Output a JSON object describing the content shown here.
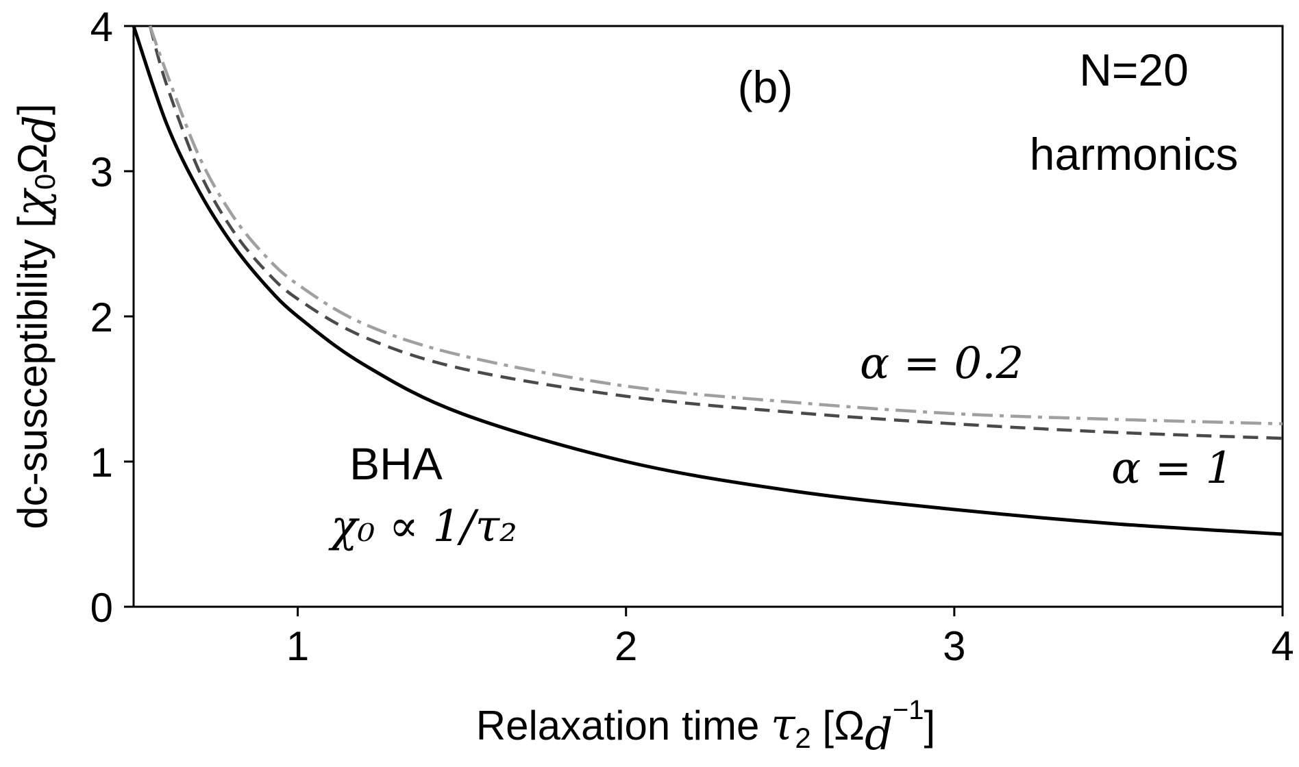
{
  "chart_data": {
    "type": "line",
    "xlabel": "Relaxation time τ₂ [Ω_d⁻¹]",
    "ylabel": "dc-susceptibility [χ₀Ω_d]",
    "xlim": [
      0.5,
      4
    ],
    "ylim": [
      0,
      4
    ],
    "xticks": [
      1,
      2,
      3,
      4
    ],
    "yticks": [
      0,
      1,
      2,
      3,
      4
    ],
    "grid": false,
    "series": [
      {
        "name": "BHA",
        "style": "solid",
        "color": "#000000",
        "x": [
          0.5,
          0.6,
          0.7,
          0.8,
          0.9,
          1.0,
          1.2,
          1.5,
          2.0,
          2.5,
          3.0,
          3.5,
          4.0
        ],
        "y": [
          4.0,
          3.33,
          2.86,
          2.5,
          2.22,
          2.0,
          1.67,
          1.33,
          1.0,
          0.8,
          0.67,
          0.57,
          0.5
        ]
      },
      {
        "name": "α = 1",
        "style": "dashed",
        "color": "#4a4a4a",
        "x": [
          0.55,
          0.6,
          0.7,
          0.8,
          0.9,
          1.0,
          1.2,
          1.5,
          2.0,
          2.5,
          3.0,
          3.5,
          4.0
        ],
        "y": [
          4.0,
          3.6,
          3.0,
          2.6,
          2.32,
          2.12,
          1.86,
          1.64,
          1.45,
          1.34,
          1.26,
          1.2,
          1.16
        ]
      },
      {
        "name": "α = 0.2",
        "style": "dashdot",
        "color": "#a0a0a0",
        "x": [
          0.55,
          0.6,
          0.7,
          0.8,
          0.9,
          1.0,
          1.2,
          1.5,
          2.0,
          2.5,
          3.0,
          3.5,
          4.0
        ],
        "y": [
          4.0,
          3.68,
          3.1,
          2.7,
          2.42,
          2.22,
          1.95,
          1.73,
          1.52,
          1.41,
          1.33,
          1.29,
          1.26
        ]
      }
    ],
    "annotations": {
      "panel": "(b)",
      "n_line1": "N=20",
      "n_line2": "harmonics",
      "bha": "BHA",
      "bha_relation": "χ₀ ∝ 1/τ₂",
      "alpha_02": "α =  0.2",
      "alpha_1": "α = 1"
    }
  }
}
